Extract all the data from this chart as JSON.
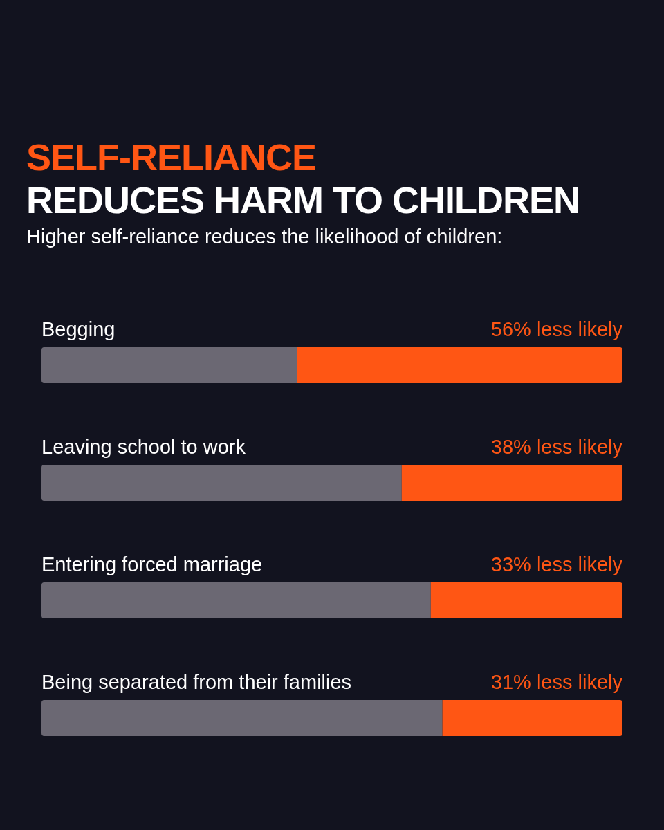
{
  "chart_data": {
    "type": "bar",
    "orientation": "horizontal",
    "stacked": true,
    "title": "SELF-RELIANCE\nREDUCES HARM TO CHILDREN",
    "subtitle": "Higher self-reliance reduces the likelihood of children:",
    "categories": [
      "Begging",
      "Leaving school to work",
      "Entering forced marriage",
      "Being separated from their families"
    ],
    "xlim": [
      0,
      100
    ],
    "tick_labels": false,
    "grid": false,
    "legend": false,
    "series": [
      {
        "color": "#6b6873",
        "values": [
          44,
          62,
          67,
          69
        ]
      },
      {
        "color": "#ff5614",
        "values": [
          56,
          38,
          33,
          31
        ],
        "value_labels": [
          "56% less likely",
          "38% less likely",
          "33% less likely",
          "31% less likely"
        ]
      }
    ]
  }
}
